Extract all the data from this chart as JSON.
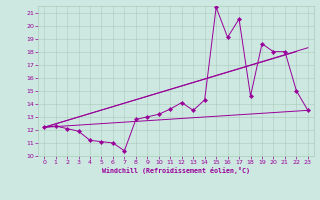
{
  "xlabel": "Windchill (Refroidissement éolien,°C)",
  "xlim": [
    -0.5,
    23.5
  ],
  "ylim": [
    10,
    21.5
  ],
  "xticks": [
    0,
    1,
    2,
    3,
    4,
    5,
    6,
    7,
    8,
    9,
    10,
    11,
    12,
    13,
    14,
    15,
    16,
    17,
    18,
    19,
    20,
    21,
    22,
    23
  ],
  "yticks": [
    10,
    11,
    12,
    13,
    14,
    15,
    16,
    17,
    18,
    19,
    20,
    21
  ],
  "bg_color": "#cce8e0",
  "line_color": "#990099",
  "grid_color": "#aaccbb",
  "line1_x": [
    0,
    1,
    2,
    3,
    4,
    5,
    6,
    7,
    8,
    9,
    10,
    11,
    12,
    13,
    14,
    15,
    16,
    17,
    18,
    19,
    20,
    21,
    22,
    23
  ],
  "line1_y": [
    12.2,
    12.3,
    12.1,
    11.9,
    11.2,
    11.1,
    11.0,
    10.4,
    12.8,
    13.0,
    13.2,
    13.6,
    14.1,
    13.5,
    14.3,
    21.4,
    19.1,
    20.5,
    14.6,
    18.6,
    18.0,
    18.0,
    15.0,
    13.5
  ],
  "line2_x": [
    0,
    23
  ],
  "line2_y": [
    12.2,
    13.5
  ],
  "line3_x": [
    0,
    22
  ],
  "line3_y": [
    12.2,
    18.0
  ],
  "line4_x": [
    0,
    23
  ],
  "line4_y": [
    12.2,
    18.3
  ]
}
